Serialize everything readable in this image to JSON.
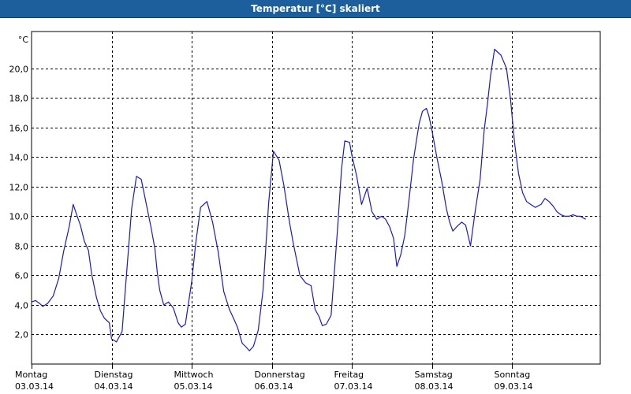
{
  "window": {
    "title": "Temperatur [°C] skaliert"
  },
  "colors": {
    "titlebar": "#1c5f9c",
    "line": "#1a1ac8",
    "grid": "#000000"
  },
  "chart_data": {
    "type": "line",
    "title": "",
    "ylabel": "°C",
    "xlabel": "",
    "ylim": [
      0,
      22.5
    ],
    "xlim": [
      0,
      7.1
    ],
    "grid": true,
    "yticks": [
      2,
      4,
      6,
      8,
      10,
      12,
      14,
      16,
      18,
      20
    ],
    "ytick_labels": [
      "2,0",
      "4,0",
      "6,0",
      "8,0",
      "10,0",
      "12,0",
      "14,0",
      "16,0",
      "18,0",
      "20,0"
    ],
    "xticks": [
      {
        "day": "Montag",
        "date": "03.03.14"
      },
      {
        "day": "Dienstag",
        "date": "04.03.14"
      },
      {
        "day": "Mittwoch",
        "date": "05.03.14"
      },
      {
        "day": "Donnerstag",
        "date": "06.03.14"
      },
      {
        "day": "Freitag",
        "date": "07.03.14"
      },
      {
        "day": "Samstag",
        "date": "08.03.14"
      },
      {
        "day": "Sonntag",
        "date": "09.03.14"
      }
    ],
    "series": [
      {
        "x": [
          0.0,
          0.05,
          0.1,
          0.14,
          0.2,
          0.27,
          0.34,
          0.4,
          0.47,
          0.52,
          0.57,
          0.61,
          0.66,
          0.71,
          0.75,
          0.81,
          0.86,
          0.91,
          0.97,
          1.0,
          1.06,
          1.13,
          1.2,
          1.25,
          1.31,
          1.37,
          1.43,
          1.49,
          1.54,
          1.57,
          1.6,
          1.65,
          1.71,
          1.77,
          1.83,
          1.87,
          1.92,
          2.0,
          2.05,
          2.11,
          2.19,
          2.26,
          2.33,
          2.4,
          2.47,
          2.53,
          2.57,
          2.63,
          2.67,
          2.72,
          2.77,
          2.83,
          2.89,
          2.96,
          3.02,
          3.09,
          3.15,
          3.22,
          3.27,
          3.35,
          3.42,
          3.49,
          3.54,
          3.59,
          3.63,
          3.68,
          3.74,
          3.82,
          3.87,
          3.91,
          3.97,
          4.0,
          4.06,
          4.12,
          4.19,
          4.25,
          4.31,
          4.37,
          4.42,
          4.47,
          4.52,
          4.56,
          4.61,
          4.66,
          4.71,
          4.77,
          4.81,
          4.84,
          4.88,
          4.93,
          4.96,
          5.0,
          5.06,
          5.12,
          5.18,
          5.22,
          5.26,
          5.31,
          5.37,
          5.42,
          5.48,
          5.54,
          5.6,
          5.65,
          5.69,
          5.73,
          5.78,
          5.86,
          5.93,
          5.98,
          6.03,
          6.08,
          6.13,
          6.18,
          6.23,
          6.29,
          6.36,
          6.41,
          6.46,
          6.51,
          6.56,
          6.61,
          6.66,
          6.71,
          6.76,
          6.81,
          6.85,
          6.88,
          6.92
        ],
        "y": [
          4.2,
          4.3,
          4.1,
          3.9,
          4.1,
          4.6,
          5.8,
          7.6,
          9.3,
          10.8,
          10.0,
          9.4,
          8.3,
          7.7,
          6.1,
          4.5,
          3.6,
          3.1,
          2.8,
          1.7,
          1.5,
          2.2,
          7.1,
          10.5,
          12.7,
          12.5,
          10.9,
          9.3,
          7.8,
          6.2,
          5.0,
          4.0,
          4.2,
          3.8,
          2.8,
          2.5,
          2.7,
          5.6,
          8.2,
          10.6,
          11.0,
          9.6,
          7.6,
          4.9,
          3.7,
          3.0,
          2.5,
          1.4,
          1.2,
          0.9,
          1.2,
          2.3,
          5.0,
          10.9,
          14.4,
          13.8,
          12.1,
          9.6,
          8.1,
          6.0,
          5.5,
          5.3,
          3.7,
          3.2,
          2.6,
          2.7,
          3.3,
          9.1,
          13.2,
          15.1,
          15.0,
          14.1,
          12.7,
          10.8,
          11.9,
          10.3,
          9.8,
          10.0,
          9.8,
          9.3,
          8.5,
          6.6,
          7.4,
          8.7,
          11.0,
          13.9,
          15.3,
          16.3,
          17.1,
          17.3,
          16.8,
          15.8,
          14.0,
          12.4,
          10.5,
          9.6,
          9.0,
          9.3,
          9.6,
          9.4,
          8.0,
          10.4,
          12.5,
          15.8,
          17.5,
          19.5,
          21.3,
          20.9,
          20.0,
          17.9,
          15.0,
          12.9,
          11.6,
          11.0,
          10.8,
          10.6,
          10.8,
          11.2,
          11.0,
          10.7,
          10.3,
          10.1,
          10.0,
          10.0,
          10.1,
          10.0,
          10.0,
          9.9,
          9.8
        ]
      }
    ]
  }
}
